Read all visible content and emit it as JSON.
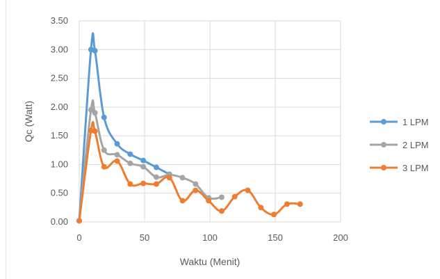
{
  "chart_data": {
    "type": "line",
    "xlabel": "Waktu (Menit)",
    "ylabel": "Qc (Watt)",
    "xlim": [
      0,
      200
    ],
    "ylim": [
      0,
      3.5
    ],
    "x_ticks": [
      "0",
      "50",
      "100",
      "150",
      "200"
    ],
    "y_ticks": [
      "0.00",
      "0.50",
      "1.00",
      "1.50",
      "2.00",
      "2.50",
      "3.00",
      "3.50"
    ],
    "grid": true,
    "legend_position": "right",
    "series": [
      {
        "name": "1 LPM",
        "color": "#5B9BD5",
        "points": [
          [
            0,
            0.02
          ],
          [
            9,
            3.0
          ],
          [
            12,
            2.98
          ],
          [
            19,
            1.82
          ],
          [
            29,
            1.36
          ],
          [
            39,
            1.18
          ],
          [
            49,
            1.07
          ],
          [
            59,
            0.95
          ],
          [
            69,
            0.83
          ]
        ]
      },
      {
        "name": "2 LPM",
        "color": "#A5A5A5",
        "points": [
          [
            0,
            0.02
          ],
          [
            9,
            1.95
          ],
          [
            12,
            1.9
          ],
          [
            19,
            1.25
          ],
          [
            29,
            1.17
          ],
          [
            39,
            1.02
          ],
          [
            49,
            0.96
          ],
          [
            59,
            0.78
          ],
          [
            69,
            0.82
          ],
          [
            79,
            0.77
          ],
          [
            89,
            0.66
          ],
          [
            99,
            0.42
          ],
          [
            109,
            0.43
          ]
        ]
      },
      {
        "name": "3 LPM",
        "color": "#ED7D31",
        "points": [
          [
            0,
            0.02
          ],
          [
            9,
            1.59
          ],
          [
            12,
            1.58
          ],
          [
            19,
            0.96
          ],
          [
            29,
            1.06
          ],
          [
            39,
            0.66
          ],
          [
            49,
            0.67
          ],
          [
            59,
            0.66
          ],
          [
            69,
            0.77
          ],
          [
            79,
            0.37
          ],
          [
            89,
            0.55
          ],
          [
            99,
            0.37
          ],
          [
            109,
            0.19
          ],
          [
            119,
            0.44
          ],
          [
            129,
            0.55
          ],
          [
            139,
            0.25
          ],
          [
            149,
            0.13
          ],
          [
            159,
            0.31
          ],
          [
            169,
            0.31
          ]
        ]
      }
    ]
  }
}
